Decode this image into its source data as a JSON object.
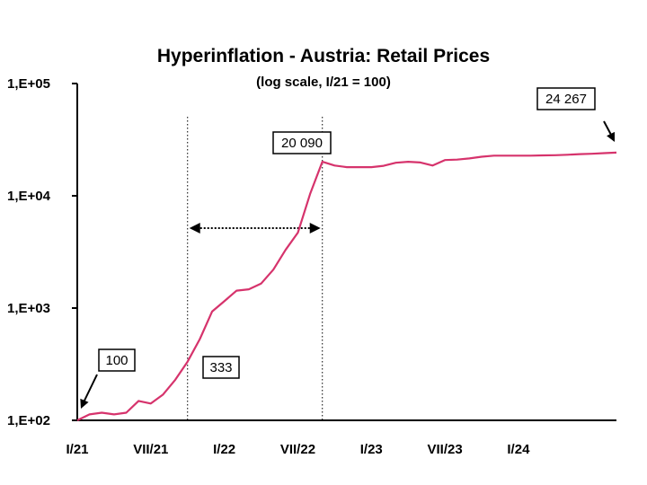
{
  "chart_data": {
    "type": "line",
    "title": "Hyperinflation - Austria: Retail Prices",
    "subtitle": "(log scale, I/21 = 100)",
    "xlabel": "",
    "ylabel": "",
    "y_scale": "log",
    "ylim": [
      100,
      100000
    ],
    "y_ticks": [
      "1,E+02",
      "1,E+03",
      "1,E+04",
      "1,E+05"
    ],
    "x_ticks": [
      "I/21",
      "VII/21",
      "I/22",
      "VII/22",
      "I/23",
      "VII/23",
      "I/24"
    ],
    "grid": false,
    "series": [
      {
        "color": "#d6336c",
        "x": [
          "1921-01",
          "1921-02",
          "1921-03",
          "1921-04",
          "1921-05",
          "1921-06",
          "1921-07",
          "1921-08",
          "1921-09",
          "1921-10",
          "1921-11",
          "1921-12",
          "1922-01",
          "1922-02",
          "1922-03",
          "1922-04",
          "1922-05",
          "1922-06",
          "1922-07",
          "1922-08",
          "1922-09",
          "1922-10",
          "1922-11",
          "1922-12",
          "1923-01",
          "1923-02",
          "1923-03",
          "1923-04",
          "1923-05",
          "1923-06",
          "1923-07",
          "1923-08",
          "1923-09",
          "1923-10",
          "1923-11",
          "1923-12",
          "1924-01",
          "1924-02",
          "1924-03",
          "1924-04",
          "1924-05",
          "1924-06",
          "1924-07",
          "1924-08",
          "1924-09"
        ],
        "values": [
          100,
          113,
          117,
          113,
          117,
          149,
          141,
          170,
          230,
          333,
          530,
          930,
          1150,
          1430,
          1470,
          1650,
          2200,
          3300,
          4700,
          10400,
          20090,
          18600,
          18000,
          18000,
          18000,
          18500,
          19700,
          20100,
          19800,
          18600,
          20800,
          21000,
          21500,
          22300,
          22800,
          22800,
          22800,
          22800,
          22900,
          23000,
          23200,
          23500,
          23700,
          24000,
          24267
        ]
      }
    ],
    "annotations": [
      {
        "label": "100",
        "x": "1921-01",
        "value": 100
      },
      {
        "label": "333",
        "x": "1921-10",
        "value": 333
      },
      {
        "label": "20 090",
        "x": "1922-09",
        "value": 20090
      },
      {
        "label": "24 267",
        "x": "1924-09",
        "value": 24267
      }
    ],
    "range_markers": {
      "start": "1921-10",
      "end": "1922-09"
    }
  }
}
